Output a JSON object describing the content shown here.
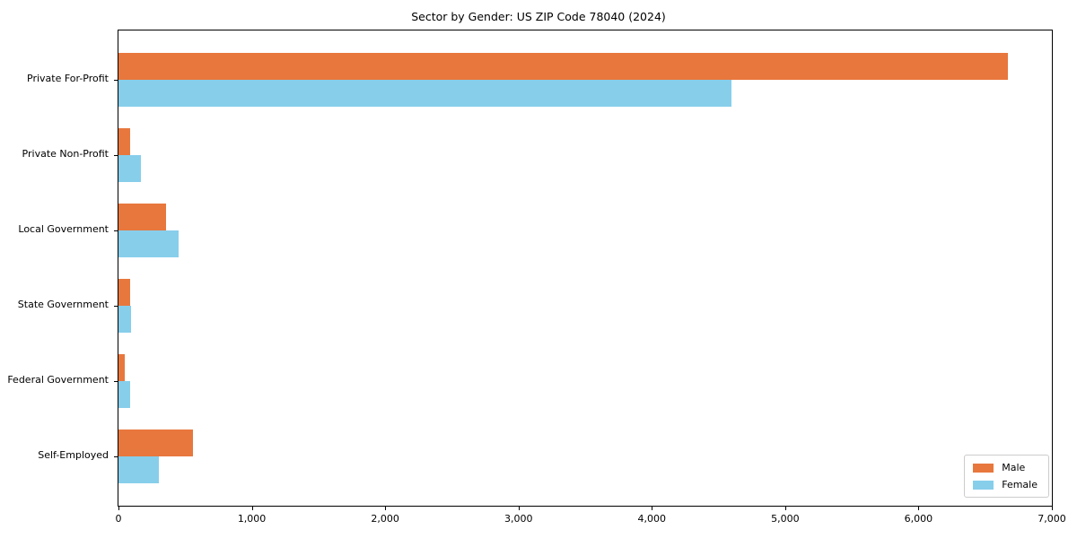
{
  "title": "Sector by Gender: US ZIP Code 78040 (2024)",
  "chart_data": {
    "type": "bar",
    "orientation": "horizontal",
    "title": "Sector by Gender: US ZIP Code 78040 (2024)",
    "categories": [
      "Private For-Profit",
      "Private Non-Profit",
      "Local Government",
      "State Government",
      "Federal Government",
      "Self-Employed"
    ],
    "series": [
      {
        "name": "Male",
        "color": "#e8773d",
        "values": [
          6670,
          90,
          360,
          85,
          45,
          560
        ]
      },
      {
        "name": "Female",
        "color": "#87ceeb",
        "values": [
          4600,
          165,
          450,
          95,
          85,
          300
        ]
      }
    ],
    "xlabel": "",
    "ylabel": "",
    "xlim": [
      0,
      7000
    ],
    "x_ticks": [
      0,
      1000,
      2000,
      3000,
      4000,
      5000,
      6000,
      7000
    ],
    "x_tick_labels": [
      "0",
      "1,000",
      "2,000",
      "3,000",
      "4,000",
      "5,000",
      "6,000",
      "7,000"
    ],
    "grid": false,
    "legend_position": "lower right",
    "plot_border": "#000000"
  }
}
